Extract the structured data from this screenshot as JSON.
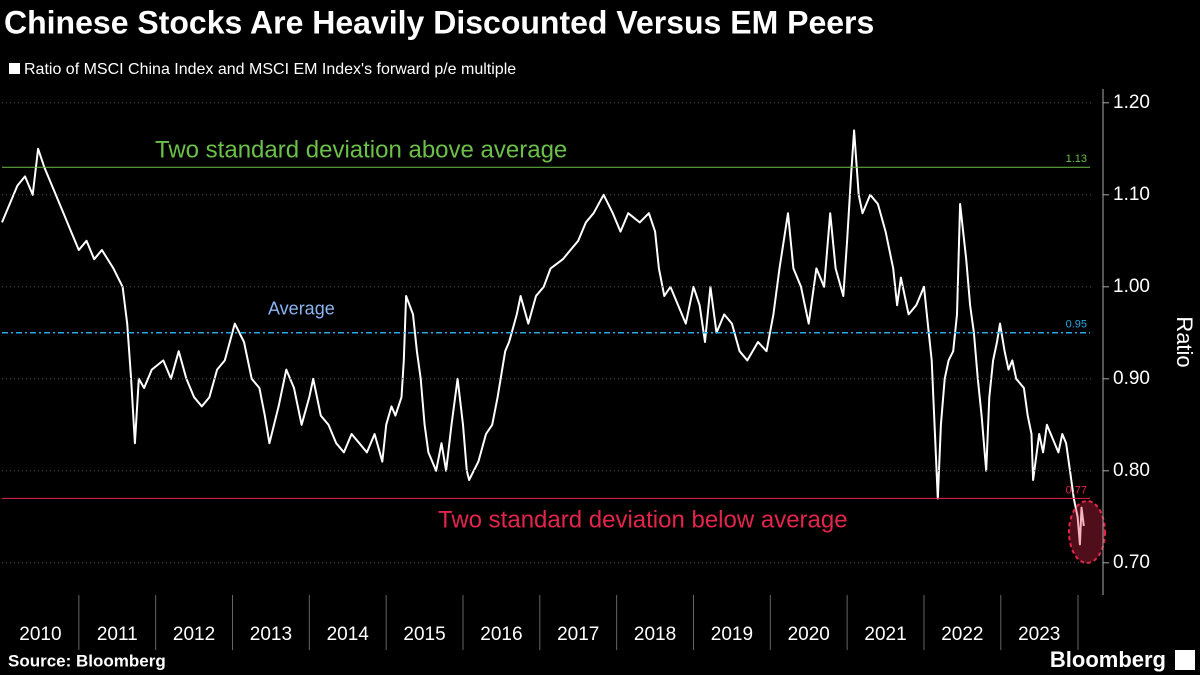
{
  "chart_data": {
    "type": "line",
    "title": "Chinese Stocks Are Heavily Discounted Versus EM Peers",
    "y_axis_label": "Ratio",
    "xlim": [
      2010,
      2024.2
    ],
    "xticks": [
      2010,
      2011,
      2012,
      2013,
      2014,
      2015,
      2016,
      2017,
      2018,
      2019,
      2020,
      2021,
      2022,
      2023
    ],
    "ylim": [
      0.665,
      1.215
    ],
    "yticks": [
      {
        "value": 0.7,
        "label": "0.70"
      },
      {
        "value": 0.8,
        "label": "0.80"
      },
      {
        "value": 0.9,
        "label": "0.90"
      },
      {
        "value": 1.0,
        "label": "1.00"
      },
      {
        "value": 1.1,
        "label": "1.10"
      },
      {
        "value": 1.2,
        "label": "1.20"
      }
    ],
    "grid": true,
    "x": [
      2010.0,
      2010.1,
      2010.2,
      2010.3,
      2010.4,
      2010.47,
      2010.55,
      2010.7,
      2010.8,
      2010.9,
      2011.0,
      2011.1,
      2011.2,
      2011.3,
      2011.45,
      2011.57,
      2011.63,
      2011.68,
      2011.73,
      2011.78,
      2011.85,
      2011.95,
      2012.1,
      2012.2,
      2012.3,
      2012.4,
      2012.5,
      2012.6,
      2012.7,
      2012.8,
      2012.9,
      2013.03,
      2013.15,
      2013.25,
      2013.35,
      2013.42,
      2013.48,
      2013.6,
      2013.7,
      2013.8,
      2013.9,
      2014.0,
      2014.05,
      2014.15,
      2014.25,
      2014.35,
      2014.45,
      2014.55,
      2014.65,
      2014.75,
      2014.85,
      2014.95,
      2015.0,
      2015.07,
      2015.12,
      2015.2,
      2015.23,
      2015.26,
      2015.35,
      2015.4,
      2015.45,
      2015.5,
      2015.55,
      2015.65,
      2015.72,
      2015.78,
      2015.85,
      2015.93,
      2016.0,
      2016.05,
      2016.08,
      2016.2,
      2016.3,
      2016.38,
      2016.45,
      2016.55,
      2016.6,
      2016.7,
      2016.75,
      2016.85,
      2016.95,
      2017.05,
      2017.14,
      2017.3,
      2017.4,
      2017.5,
      2017.6,
      2017.7,
      2017.83,
      2017.95,
      2018.05,
      2018.15,
      2018.3,
      2018.42,
      2018.5,
      2018.55,
      2018.62,
      2018.7,
      2018.8,
      2018.9,
      2019.0,
      2019.08,
      2019.15,
      2019.22,
      2019.3,
      2019.4,
      2019.5,
      2019.6,
      2019.7,
      2019.84,
      2019.95,
      2020.04,
      2020.12,
      2020.23,
      2020.3,
      2020.4,
      2020.5,
      2020.6,
      2020.7,
      2020.78,
      2020.85,
      2020.95,
      2021.0,
      2021.05,
      2021.09,
      2021.15,
      2021.2,
      2021.3,
      2021.4,
      2021.5,
      2021.6,
      2021.65,
      2021.7,
      2021.8,
      2021.9,
      2022.0,
      2022.05,
      2022.1,
      2022.18,
      2022.22,
      2022.27,
      2022.32,
      2022.38,
      2022.43,
      2022.47,
      2022.55,
      2022.6,
      2022.65,
      2022.7,
      2022.75,
      2022.81,
      2022.85,
      2022.9,
      2022.95,
      2022.99,
      2023.05,
      2023.1,
      2023.15,
      2023.2,
      2023.3,
      2023.35,
      2023.4,
      2023.42,
      2023.5,
      2023.55,
      2023.6,
      2023.7,
      2023.75,
      2023.8,
      2023.85,
      2023.9,
      2023.95,
      2024.0,
      2024.03,
      2024.05,
      2024.08
    ],
    "series": [
      {
        "name": "Ratio of MSCI China Index and MSCI EM Index's forward p/e multiple",
        "color": "#ffffff",
        "values": [
          1.07,
          1.09,
          1.11,
          1.12,
          1.1,
          1.15,
          1.13,
          1.1,
          1.08,
          1.06,
          1.04,
          1.05,
          1.03,
          1.04,
          1.02,
          1.0,
          0.96,
          0.9,
          0.83,
          0.9,
          0.89,
          0.91,
          0.92,
          0.9,
          0.93,
          0.9,
          0.88,
          0.87,
          0.88,
          0.91,
          0.92,
          0.96,
          0.94,
          0.9,
          0.89,
          0.86,
          0.83,
          0.87,
          0.91,
          0.89,
          0.85,
          0.88,
          0.9,
          0.86,
          0.85,
          0.83,
          0.82,
          0.84,
          0.83,
          0.82,
          0.84,
          0.81,
          0.85,
          0.87,
          0.86,
          0.88,
          0.92,
          0.99,
          0.97,
          0.93,
          0.9,
          0.85,
          0.82,
          0.8,
          0.83,
          0.8,
          0.85,
          0.9,
          0.85,
          0.8,
          0.79,
          0.81,
          0.84,
          0.85,
          0.88,
          0.93,
          0.94,
          0.97,
          0.99,
          0.96,
          0.99,
          1.0,
          1.02,
          1.03,
          1.04,
          1.05,
          1.07,
          1.08,
          1.1,
          1.08,
          1.06,
          1.08,
          1.07,
          1.08,
          1.06,
          1.02,
          0.99,
          1.0,
          0.98,
          0.96,
          1.0,
          0.98,
          0.94,
          1.0,
          0.95,
          0.97,
          0.96,
          0.93,
          0.92,
          0.94,
          0.93,
          0.97,
          1.02,
          1.08,
          1.02,
          1.0,
          0.96,
          1.02,
          1.0,
          1.08,
          1.02,
          0.99,
          1.05,
          1.12,
          1.17,
          1.1,
          1.08,
          1.1,
          1.09,
          1.06,
          1.02,
          0.98,
          1.01,
          0.97,
          0.98,
          1.0,
          0.96,
          0.92,
          0.77,
          0.85,
          0.9,
          0.92,
          0.93,
          0.97,
          1.09,
          1.03,
          0.98,
          0.95,
          0.9,
          0.86,
          0.8,
          0.88,
          0.92,
          0.94,
          0.96,
          0.93,
          0.91,
          0.92,
          0.9,
          0.89,
          0.86,
          0.84,
          0.79,
          0.84,
          0.82,
          0.85,
          0.83,
          0.82,
          0.84,
          0.83,
          0.8,
          0.77,
          0.75,
          0.72,
          0.76,
          0.74
        ]
      }
    ],
    "reference_lines": [
      {
        "value": 1.13,
        "label": "Two standard deviation above average",
        "color": "#6cc04a"
      },
      {
        "value": 0.95,
        "label": "Average",
        "color": "#29a8e0"
      },
      {
        "value": 0.77,
        "label": "Two standard deviation below average",
        "color": "#e4254b"
      }
    ],
    "source": "Source: Bloomberg",
    "brand": "Bloomberg"
  }
}
